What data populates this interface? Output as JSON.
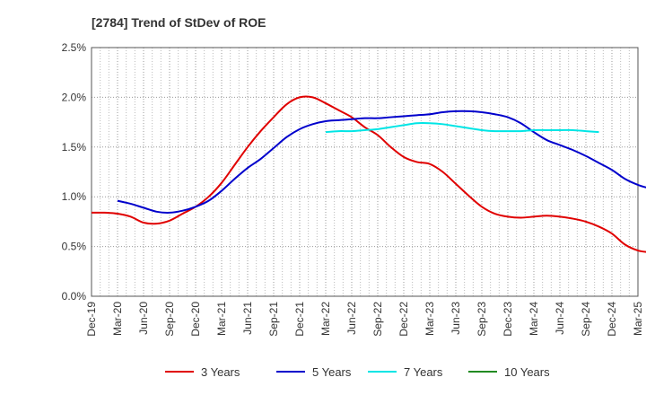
{
  "chart_data": {
    "type": "line",
    "title": "[2784]  Trend of StDev of ROE",
    "xlabel": "",
    "ylabel": "",
    "x_tick_labels": [
      "Dec-19",
      "Mar-20",
      "Jun-20",
      "Sep-20",
      "Dec-20",
      "Mar-21",
      "Jun-21",
      "Sep-21",
      "Dec-21",
      "Mar-22",
      "Jun-22",
      "Sep-22",
      "Dec-22",
      "Mar-23",
      "Jun-23",
      "Sep-23",
      "Dec-23",
      "Mar-24",
      "Jun-24",
      "Sep-24",
      "Dec-24",
      "Mar-25"
    ],
    "y_tick_labels": [
      "0.0%",
      "0.5%",
      "1.0%",
      "1.5%",
      "2.0%",
      "2.5%"
    ],
    "ylim": [
      0,
      2.5
    ],
    "grid": true,
    "legend_position": "bottom",
    "series": [
      {
        "name": "3 Years",
        "color": "#e00000",
        "start_index": 0,
        "values": [
          0.84,
          0.84,
          0.83,
          0.8,
          0.74,
          0.73,
          0.76,
          0.83,
          0.9,
          1.0,
          1.14,
          1.32,
          1.5,
          1.66,
          1.8,
          1.93,
          2.0,
          2.0,
          1.94,
          1.87,
          1.8,
          1.7,
          1.62,
          1.5,
          1.4,
          1.35,
          1.33,
          1.25,
          1.13,
          1.01,
          0.9,
          0.83,
          0.8,
          0.79,
          0.8,
          0.81,
          0.8,
          0.78,
          0.75,
          0.7,
          0.63,
          0.52,
          0.46,
          0.44
        ]
      },
      {
        "name": "5 Years",
        "color": "#0000cc",
        "start_index": 2,
        "values": [
          0.96,
          0.93,
          0.89,
          0.85,
          0.84,
          0.86,
          0.9,
          0.96,
          1.06,
          1.18,
          1.29,
          1.38,
          1.49,
          1.6,
          1.68,
          1.73,
          1.76,
          1.77,
          1.78,
          1.79,
          1.79,
          1.8,
          1.81,
          1.82,
          1.83,
          1.85,
          1.86,
          1.86,
          1.85,
          1.83,
          1.8,
          1.74,
          1.65,
          1.57,
          1.52,
          1.47,
          1.41,
          1.34,
          1.27,
          1.18,
          1.12,
          1.08
        ]
      },
      {
        "name": "7 Years",
        "color": "#00e5e5",
        "start_index": 18,
        "values": [
          1.65,
          1.66,
          1.66,
          1.67,
          1.68,
          1.7,
          1.72,
          1.74,
          1.74,
          1.73,
          1.71,
          1.69,
          1.67,
          1.66,
          1.66,
          1.66,
          1.67,
          1.67,
          1.67,
          1.67,
          1.66,
          1.65
        ]
      },
      {
        "name": "10 Years",
        "color": "#228b22",
        "start_index": 0,
        "values": []
      }
    ]
  }
}
